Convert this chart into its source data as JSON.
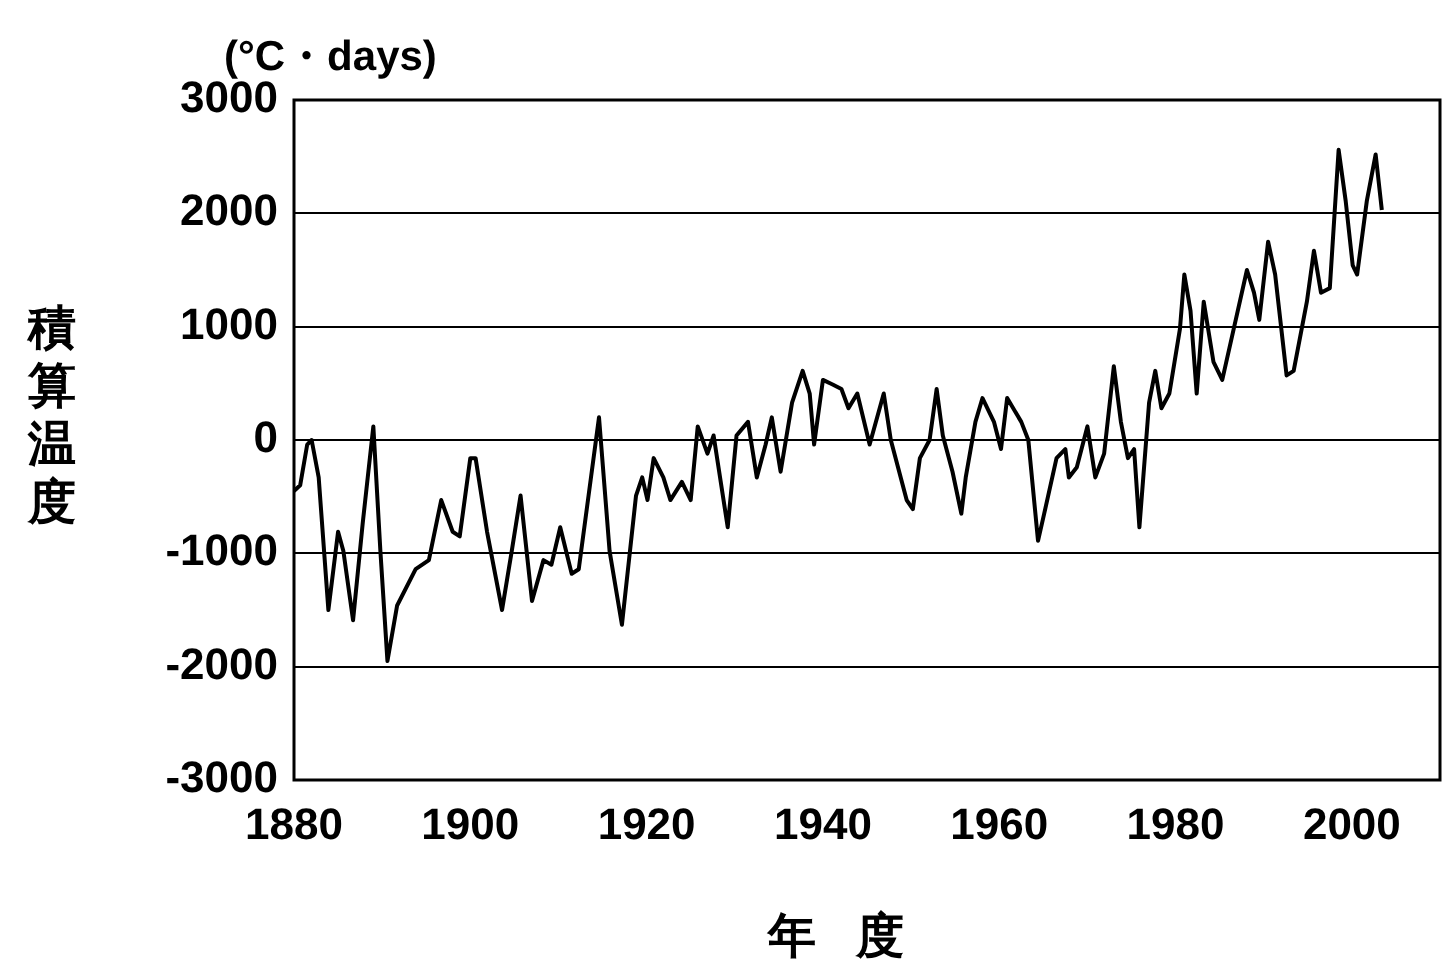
{
  "chart_data": {
    "type": "line",
    "ylabel": "積算温度",
    "xlabel": "年度",
    "annotations": [
      "(°C・days)"
    ],
    "x": [
      1880,
      1880.7,
      1881.5,
      1882,
      1882.8,
      1883.9,
      1885,
      1885.6,
      1886.7,
      1887.8,
      1889,
      1889.8,
      1890.6,
      1891.7,
      1893.8,
      1895.3,
      1896.7,
      1898,
      1898.8,
      1900,
      1900.6,
      1901.9,
      1903.6,
      1904.7,
      1905.7,
      1907,
      1908.3,
      1909.2,
      1910.2,
      1911.5,
      1912.3,
      1914.6,
      1915.8,
      1917.2,
      1918.8,
      1919.5,
      1920.1,
      1920.8,
      1921.9,
      1922.7,
      1924,
      1925,
      1925.8,
      1926.9,
      1927.6,
      1929.2,
      1930.2,
      1931.5,
      1932.5,
      1933.5,
      1934.2,
      1935.2,
      1936.5,
      1937.7,
      1938.5,
      1939,
      1940,
      1941.1,
      1942.1,
      1942.9,
      1943.9,
      1945.3,
      1946.9,
      1947.7,
      1949.5,
      1950.2,
      1951,
      1952.1,
      1952.9,
      1953.6,
      1954.7,
      1955.7,
      1956.2,
      1957.3,
      1958.1,
      1959.4,
      1960.2,
      1960.9,
      1962.5,
      1963.3,
      1964.4,
      1965.1,
      1966.5,
      1967.5,
      1967.9,
      1968.8,
      1970,
      1970.9,
      1971.9,
      1973,
      1973.8,
      1974.6,
      1975.3,
      1975.9,
      1977,
      1977.7,
      1978.4,
      1979.3,
      1980.5,
      1981,
      1981.7,
      1982.4,
      1983.2,
      1984.3,
      1985.3,
      1986.6,
      1988.1,
      1988.9,
      1989.5,
      1990.5,
      1991.3,
      1992.6,
      1993.4,
      1994.9,
      1995.7,
      1996.5,
      1997.5,
      1998.5,
      1999.3,
      2000.1,
      2000.6,
      2001.7,
      2002.7,
      2003.4
    ],
    "series": [
      {
        "color": "#000000",
        "values": [
          -450,
          -400,
          -40,
          0,
          -330,
          -1500,
          -810,
          -980,
          -1590,
          -730,
          120,
          -980,
          -1950,
          -1460,
          -1140,
          -1060,
          -530,
          -810,
          -850,
          -160,
          -160,
          -810,
          -1500,
          -980,
          -490,
          -1420,
          -1060,
          -1100,
          -770,
          -1180,
          -1140,
          200,
          -980,
          -1630,
          -490,
          -330,
          -530,
          -160,
          -330,
          -530,
          -370,
          -530,
          120,
          -120,
          40,
          -770,
          40,
          160,
          -330,
          -40,
          200,
          -280,
          330,
          610,
          410,
          -40,
          530,
          490,
          450,
          280,
          410,
          -40,
          410,
          0,
          -530,
          -610,
          -160,
          0,
          450,
          40,
          -280,
          -650,
          -330,
          160,
          370,
          160,
          -80,
          370,
          160,
          0,
          -890,
          -650,
          -160,
          -80,
          -330,
          -240,
          120,
          -330,
          -120,
          650,
          160,
          -160,
          -80,
          -770,
          330,
          610,
          280,
          410,
          980,
          1460,
          1140,
          410,
          1220,
          690,
          530,
          980,
          1500,
          1300,
          1060,
          1750,
          1460,
          570,
          610,
          1220,
          1670,
          1300,
          1340,
          2560,
          2110,
          1540,
          1460,
          2110,
          2520,
          2030
        ]
      }
    ],
    "xlim": [
      1880,
      2010
    ],
    "xticks": [
      1880,
      1900,
      1920,
      1940,
      1960,
      1980,
      2000
    ],
    "ylim": [
      -3000,
      3000
    ],
    "yticks": [
      -3000,
      -2000,
      -1000,
      0,
      1000,
      2000,
      3000
    ],
    "grid": "y",
    "legend": false,
    "marker": "none",
    "line_style": "solid"
  }
}
